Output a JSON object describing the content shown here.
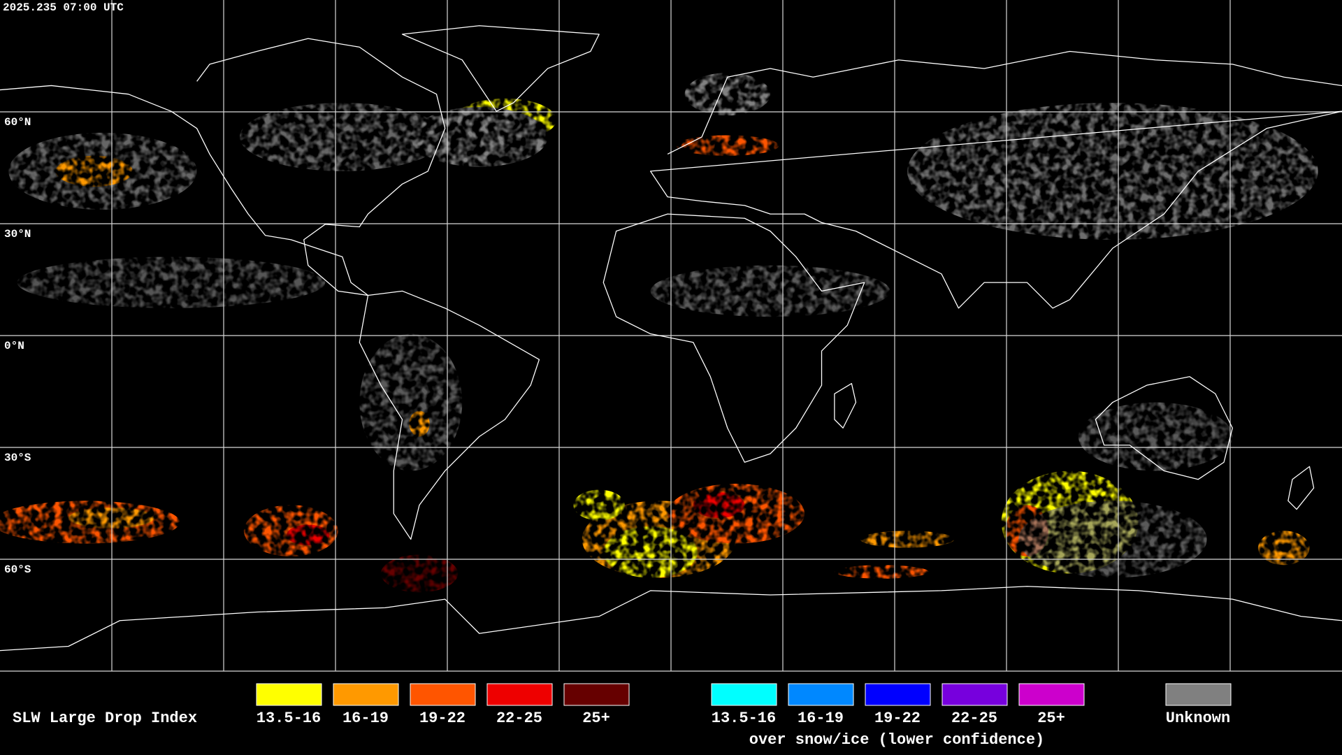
{
  "header": {
    "timestamp": "2025.235 07:00 UTC"
  },
  "map": {
    "lat_labels": [
      "60°N",
      "30°N",
      "0°N",
      "30°S",
      "60°S"
    ]
  },
  "legend": {
    "title": "SLW Large Drop Index",
    "liquid": [
      {
        "label": "13.5-16",
        "color": "#ffff00"
      },
      {
        "label": "16-19",
        "color": "#ff9900"
      },
      {
        "label": "19-22",
        "color": "#ff5500"
      },
      {
        "label": "22-25",
        "color": "#ee0000"
      },
      {
        "label": "25+",
        "color": "#660000"
      }
    ],
    "snow_ice": [
      {
        "label": "13.5-16",
        "color": "#00ffff"
      },
      {
        "label": "16-19",
        "color": "#0088ff"
      },
      {
        "label": "19-22",
        "color": "#0000ff"
      },
      {
        "label": "22-25",
        "color": "#7700dd"
      },
      {
        "label": "25+",
        "color": "#cc00cc"
      }
    ],
    "snow_ice_caption": "over snow/ice (lower confidence)",
    "unknown": {
      "label": "Unknown",
      "color": "#808080"
    }
  }
}
